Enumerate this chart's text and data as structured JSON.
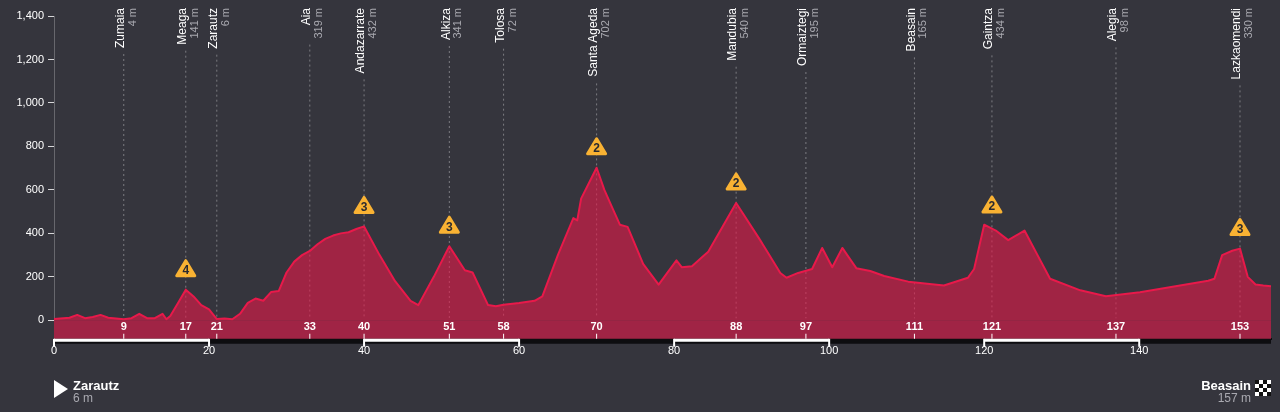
{
  "chart_data": {
    "type": "area",
    "x": [
      0,
      2,
      3,
      4,
      5,
      6,
      7,
      9,
      10,
      11,
      12,
      13,
      14,
      14.5,
      15,
      16,
      17,
      18,
      19,
      20,
      21,
      22,
      23,
      24,
      25,
      26,
      27,
      28,
      29,
      30,
      31,
      32,
      33,
      34,
      35,
      36,
      37,
      38,
      39,
      40,
      42,
      44,
      46,
      47,
      49,
      51,
      53,
      54,
      56,
      57,
      58,
      60,
      62,
      63,
      65,
      67,
      67.5,
      68,
      70,
      71,
      72,
      73,
      74,
      76,
      78,
      80.3,
      81,
      82.3,
      84.4,
      88,
      91.1,
      93.7,
      94.5,
      96,
      97.8,
      99.1,
      100.4,
      101.7,
      103.5,
      105.3,
      107.1,
      110.2,
      114.8,
      117.9,
      118.7,
      120,
      121.5,
      123.1,
      125.2,
      128.5,
      132.4,
      135.7,
      140.1,
      148.9,
      149.7,
      150.7,
      152,
      153,
      154,
      155,
      156,
      157
    ],
    "series": [
      {
        "color": "#e8194a",
        "values": [
          6,
          12,
          25,
          10,
          15,
          25,
          12,
          5,
          10,
          30,
          10,
          10,
          30,
          5,
          20,
          80,
          141,
          110,
          70,
          50,
          6,
          8,
          5,
          30,
          80,
          100,
          90,
          130,
          135,
          220,
          270,
          300,
          319,
          350,
          375,
          390,
          400,
          405,
          420,
          432,
          300,
          180,
          90,
          70,
          200,
          341,
          230,
          220,
          70,
          65,
          72,
          80,
          90,
          110,
          300,
          470,
          460,
          560,
          702,
          600,
          520,
          440,
          430,
          260,
          164,
          276,
          244,
          249,
          316,
          540,
          369,
          218,
          196,
          218,
          236,
          333,
          244,
          333,
          240,
          227,
          204,
          178,
          160,
          196,
          236,
          440,
          413,
          369,
          413,
          191,
          138,
          111,
          129,
          182,
          191,
          300,
          320,
          330,
          200,
          165,
          160,
          157
        ]
      }
    ],
    "xlim": [
      0,
      157
    ],
    "xticks": [
      0,
      20,
      40,
      60,
      80,
      100,
      120,
      140
    ],
    "x2lim": [
      0,
      157
    ],
    "x2ticks": [
      9,
      17,
      21,
      33,
      40,
      51,
      58,
      70,
      88,
      97,
      111,
      121,
      137,
      153
    ],
    "ylim": [
      -85,
      1400
    ],
    "yticks": [
      0,
      {
        "value": 200,
        "label": "200"
      },
      {
        "value": 400,
        "label": "400"
      },
      {
        "value": 600,
        "label": "600"
      },
      {
        "value": 800,
        "label": "800"
      },
      {
        "value": 1000,
        "label": "1,000"
      },
      {
        "value": 1200,
        "label": "1,200"
      },
      {
        "value": 1400,
        "label": "1,400"
      }
    ],
    "grid": false,
    "legend": false,
    "bands": [
      {
        "axis": "y",
        "from": -85,
        "to": 0,
        "color": "#a02445"
      }
    ],
    "ref_lines": [
      {
        "axis": "x",
        "value": 9,
        "label": "Zumaia"
      },
      {
        "axis": "x",
        "value": 17,
        "label": "Meaga"
      },
      {
        "axis": "x",
        "value": 21,
        "label": "Zarautz"
      },
      {
        "axis": "x",
        "value": 33,
        "label": "Aia"
      },
      {
        "axis": "x",
        "value": 40,
        "label": "Andazarrate"
      },
      {
        "axis": "x",
        "value": 51,
        "label": "Alkiza"
      },
      {
        "axis": "x",
        "value": 58,
        "label": "Tolosa"
      },
      {
        "axis": "x",
        "value": 70,
        "label": "Santa Ageda"
      },
      {
        "axis": "x",
        "value": 88,
        "label": "Mandubia"
      },
      {
        "axis": "x",
        "value": 97,
        "label": "Ormaiztegi"
      },
      {
        "axis": "x",
        "value": 111,
        "label": "Beasain"
      },
      {
        "axis": "x",
        "value": 121,
        "label": "Gaintza"
      },
      {
        "axis": "x",
        "value": 137,
        "label": "Alegia"
      },
      {
        "axis": "x",
        "value": 153,
        "label": "Lazkaomendi"
      }
    ],
    "annotations": [
      "4 m",
      "141 m",
      "6 m",
      "319 m",
      "432 m",
      "341 m",
      "72 m",
      "702 m",
      "540 m",
      "195 m",
      "165 m",
      "434 m",
      "98 m",
      "330 m",
      {
        "text": "4",
        "x": 17,
        "y": 141
      },
      {
        "text": "3",
        "x": 40,
        "y": 432
      },
      {
        "text": "3",
        "x": 51,
        "y": 341
      },
      {
        "text": "2",
        "x": 70,
        "y": 702
      },
      {
        "text": "2",
        "x": 88,
        "y": 540
      },
      {
        "text": "2",
        "x": 121,
        "y": 434
      },
      {
        "text": "3",
        "x": 153,
        "y": 330
      },
      "Zarautz",
      "6 m",
      "Beasain",
      "157 m"
    ]
  }
}
